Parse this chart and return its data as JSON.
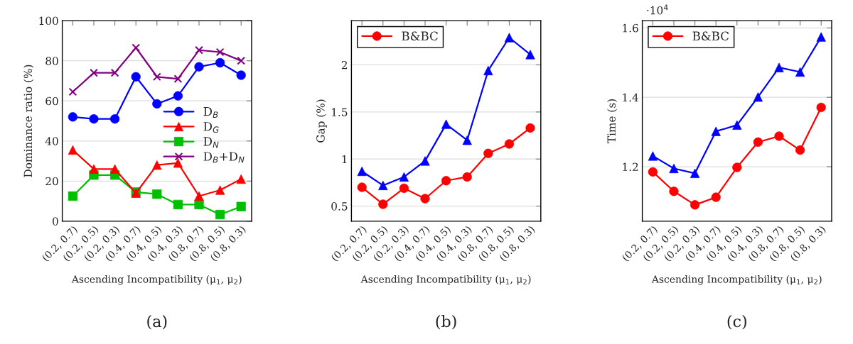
{
  "chart_data": [
    {
      "type": "line",
      "title": "(a)",
      "xlabel": "Ascending Incompatibility (μ$_{1}$, μ$_{2}$)",
      "ylabel": "Dominance ratio (%)",
      "categories": [
        "(0.2, 0.7)",
        "(0.2, 0.5)",
        "(0.2, 0.3)",
        "(0.4, 0.7)",
        "(0.4, 0.5)",
        "(0.4, 0.3)",
        "(0.8, 0.7)",
        "(0.8, 0.5)",
        "(0.8, 0.3)"
      ],
      "series": [
        {
          "name": "D$_{B}$",
          "color": "#0000ff",
          "marker": "circle",
          "values": [
            52,
            51,
            51,
            72,
            58.5,
            62.5,
            77,
            79,
            72.8
          ]
        },
        {
          "name": "D$_{G}$",
          "color": "#ff0000",
          "marker": "triangle",
          "values": [
            35.5,
            26,
            26,
            14,
            28,
            29,
            12.5,
            15.5,
            21
          ]
        },
        {
          "name": "D$_{N}$",
          "color": "#00bf00",
          "marker": "square",
          "values": [
            12.5,
            23,
            23,
            14.5,
            13.5,
            8.3,
            8.3,
            3.3,
            7.3
          ]
        },
        {
          "name": "D$_{B}$+D$_{N}$",
          "color": "#800080",
          "marker": "cross",
          "values": [
            64.5,
            74,
            74,
            86.5,
            72,
            71,
            85.3,
            84.3,
            80
          ]
        }
      ],
      "ylim": [
        0,
        100
      ],
      "yticks": [
        0,
        20,
        40,
        60,
        80,
        100
      ],
      "grid": "y",
      "legend": "right"
    },
    {
      "type": "line",
      "title": "(b)",
      "xlabel": "Ascending Incompatibility (μ$_{1}$, μ$_{2}$)",
      "ylabel": "Gap (%)",
      "categories": [
        "(0.2, 0.7)",
        "(0.2, 0.5)",
        "(0.2, 0.3)",
        "(0.4, 0.7)",
        "(0.4, 0.5)",
        "(0.4, 0.3)",
        "(0.8, 0.7)",
        "(0.8, 0.5)",
        "(0.8, 0.3)"
      ],
      "series": [
        {
          "color": "#0000ff",
          "marker": "triangle",
          "values": [
            0.87,
            0.72,
            0.81,
            0.98,
            1.37,
            1.2,
            1.94,
            2.29,
            2.11
          ]
        },
        {
          "name": "B&BC",
          "color": "#ff0000",
          "marker": "circle",
          "values": [
            0.7,
            0.52,
            0.69,
            0.58,
            0.77,
            0.81,
            1.06,
            1.16,
            1.33
          ]
        }
      ],
      "ylim": [
        0.34,
        2.47
      ],
      "yticks": [
        0.5,
        1,
        1.5,
        2
      ],
      "grid": "y",
      "legend": "top left"
    },
    {
      "type": "line",
      "title": "(c)",
      "xlabel": "Ascending Incompatibility (μ$_{1}$, μ$_{2}$)",
      "ylabel": "Time (s)",
      "annotations": [
        "·10$^{4}$"
      ],
      "categories": [
        "(0.2, 0.7)",
        "(0.2, 0.5)",
        "(0.2, 0.3)",
        "(0.4, 0.7)",
        "(0.4, 0.5)",
        "(0.4, 0.3)",
        "(0.8, 0.7)",
        "(0.8, 0.5)",
        "(0.8, 0.3)"
      ],
      "series": [
        {
          "color": "#0000ff",
          "marker": "triangle",
          "values": [
            1.231,
            1.195,
            1.181,
            1.302,
            1.32,
            1.401,
            1.486,
            1.473,
            1.574
          ]
        },
        {
          "name": "B&BC",
          "color": "#ff0000",
          "marker": "circle",
          "values": [
            1.185,
            1.129,
            1.09,
            1.112,
            1.198,
            1.271,
            1.288,
            1.248,
            1.371
          ]
        }
      ],
      "ylim": [
        1.043,
        1.621
      ],
      "yticks": [
        1.2,
        1.4,
        1.6
      ],
      "grid": "y",
      "legend": "top left"
    }
  ]
}
